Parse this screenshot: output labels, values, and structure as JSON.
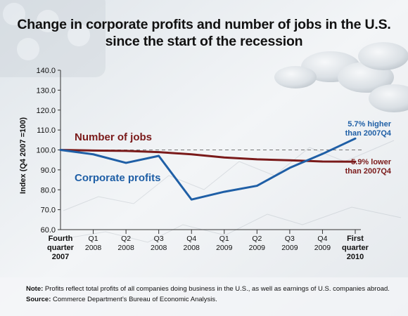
{
  "title_line1": "Change in corporate profits and number of jobs in the U.S.",
  "title_line2": "since the start of the recession",
  "note": {
    "note_label": "Note:",
    "note_text": " Profits reflect total profits of all companies doing business in the U.S., as well as earnings of U.S. companies abroad.",
    "source_label": "Source:",
    "source_text": " Commerce Department’s Bureau of Economic Analysis."
  },
  "colors": {
    "profits": "#1f5fa6",
    "jobs": "#7a1a1a",
    "reference": "#777777"
  },
  "chart_data": {
    "type": "line",
    "ylabel": "Index (Q4 2007 =100)",
    "ylim": [
      60,
      140
    ],
    "yticks": [
      "60.0",
      "70.0",
      "80.0",
      "90.0",
      "100.0",
      "110.0",
      "120.0",
      "130.0",
      "140.0"
    ],
    "categories": [
      [
        "Fourth",
        "quarter",
        "2007"
      ],
      [
        "Q1",
        "2008"
      ],
      [
        "Q2",
        "2008"
      ],
      [
        "Q3",
        "2008"
      ],
      [
        "Q4",
        "2008"
      ],
      [
        "Q1",
        "2009"
      ],
      [
        "Q2",
        "2009"
      ],
      [
        "Q3",
        "2009"
      ],
      [
        "Q4",
        "2009"
      ],
      [
        "First",
        "quarter",
        "2010"
      ]
    ],
    "reference_line": 100,
    "series": [
      {
        "name": "Number of jobs",
        "color": "#7a1a1a",
        "values": [
          100.0,
          99.7,
          99.5,
          98.9,
          97.8,
          96.2,
          95.3,
          94.8,
          94.2,
          94.1
        ],
        "end_label": [
          "5.9% lower",
          "than 2007Q4"
        ]
      },
      {
        "name": "Corporate profits",
        "color": "#1f5fa6",
        "values": [
          100.0,
          97.8,
          93.5,
          97.0,
          75.1,
          79.0,
          82.0,
          91.0,
          98.0,
          105.7
        ],
        "end_label": [
          "5.7% higher",
          "than 2007Q4"
        ]
      }
    ]
  }
}
